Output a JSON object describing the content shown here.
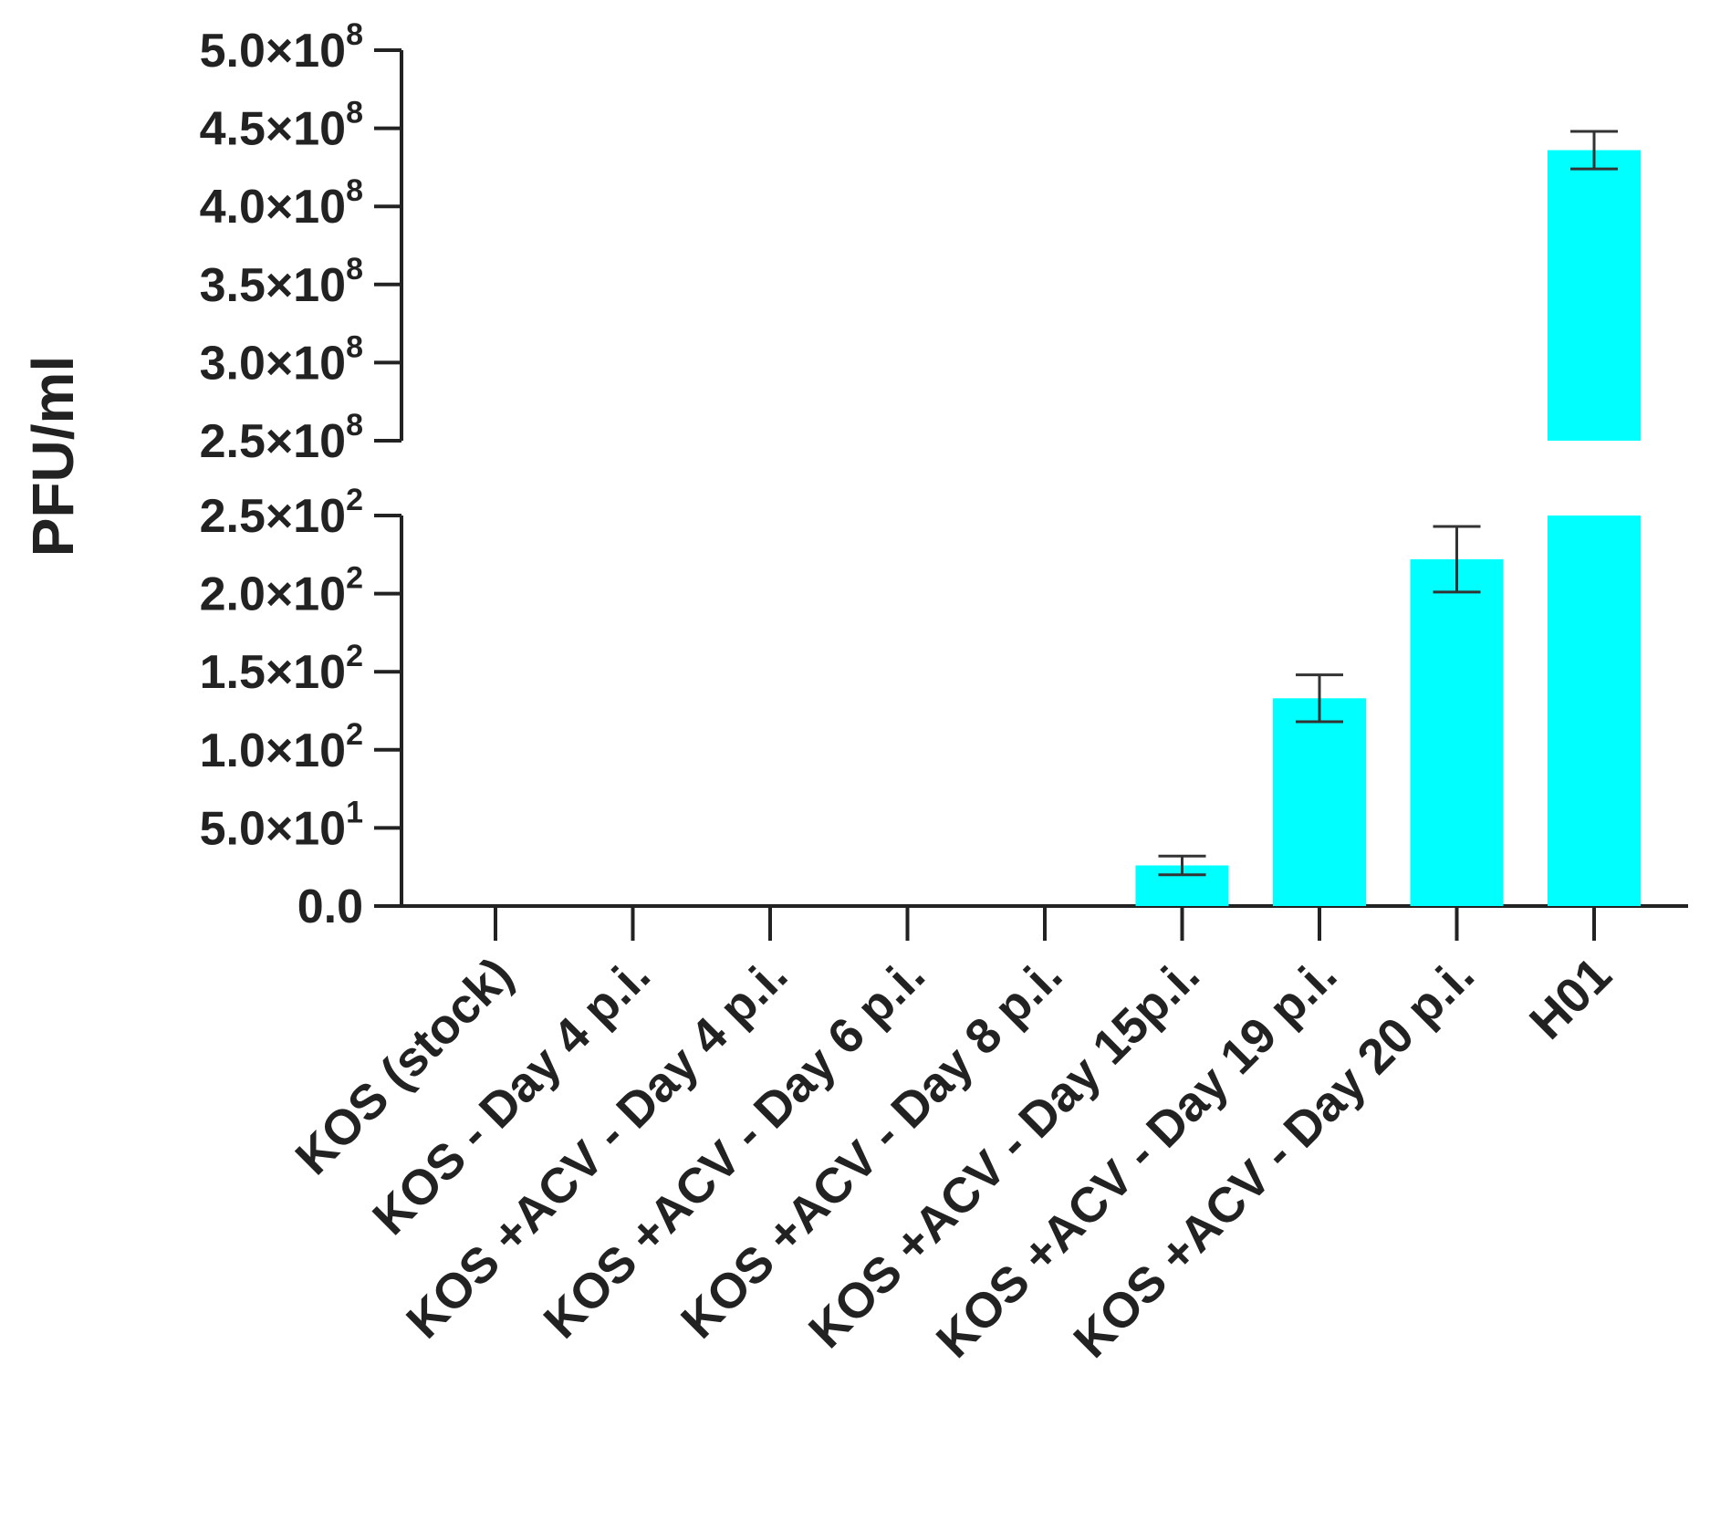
{
  "chart_data": {
    "type": "bar",
    "title": "",
    "xlabel": "",
    "ylabel": "PFU/ml",
    "bar_color": "#00FFFF",
    "axis_break": true,
    "categories": [
      "KOS (stock)",
      "KOS - Day 4 p.i.",
      "KOS +ACV - Day 4 p.i.",
      "KOS +ACV - Day 6 p.i.",
      "KOS +ACV - Day 8 p.i.",
      "KOS +ACV - Day 15p.i.",
      "KOS +ACV - Day 19 p.i.",
      "KOS +ACV - Day 20 p.i.",
      "H01"
    ],
    "values": [
      0,
      0,
      0,
      0,
      0,
      26,
      133,
      222,
      436000000
    ],
    "error": [
      0,
      0,
      0,
      0,
      0,
      6,
      15,
      21,
      12000000
    ],
    "lower_segment": {
      "ylim": [
        0,
        250
      ],
      "ticks": [
        {
          "value": 0,
          "mantissa": "0.0",
          "exponent": ""
        },
        {
          "value": 50,
          "mantissa": "5.0×10",
          "exponent": "1"
        },
        {
          "value": 100,
          "mantissa": "1.0×10",
          "exponent": "2"
        },
        {
          "value": 150,
          "mantissa": "1.5×10",
          "exponent": "2"
        },
        {
          "value": 200,
          "mantissa": "2.0×10",
          "exponent": "2"
        },
        {
          "value": 250,
          "mantissa": "2.5×10",
          "exponent": "2"
        }
      ]
    },
    "upper_segment": {
      "ylim": [
        250000000,
        500000000
      ],
      "ticks": [
        {
          "value": 250000000,
          "mantissa": "2.5×10",
          "exponent": "8"
        },
        {
          "value": 300000000,
          "mantissa": "3.0×10",
          "exponent": "8"
        },
        {
          "value": 350000000,
          "mantissa": "3.5×10",
          "exponent": "8"
        },
        {
          "value": 400000000,
          "mantissa": "4.0×10",
          "exponent": "8"
        },
        {
          "value": 450000000,
          "mantissa": "4.5×10",
          "exponent": "8"
        },
        {
          "value": 500000000,
          "mantissa": "5.0×10",
          "exponent": "8"
        }
      ]
    }
  }
}
